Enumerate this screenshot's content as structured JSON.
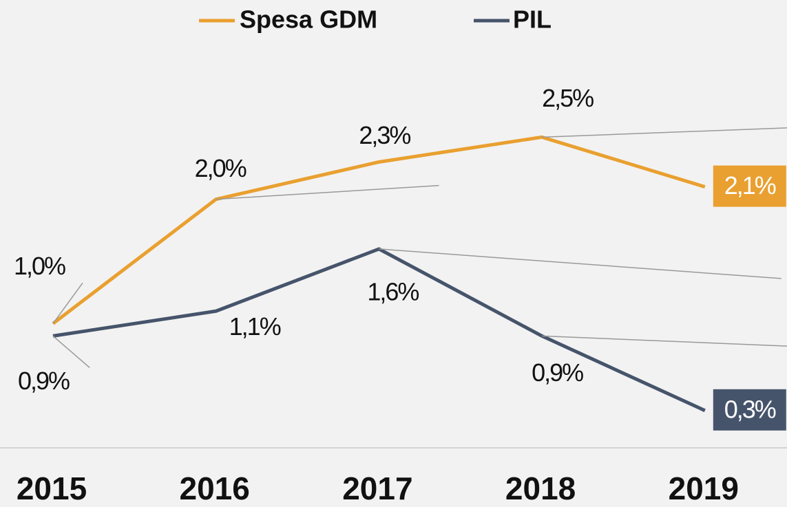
{
  "chart_data": {
    "type": "line",
    "categories": [
      "2015",
      "2016",
      "2017",
      "2018",
      "2019"
    ],
    "series": [
      {
        "name": "Spesa GDM",
        "color": "#e9a030",
        "values": [
          1.0,
          2.0,
          2.3,
          2.5,
          2.1
        ],
        "value_labels": [
          "1,0%",
          "2,0%",
          "2,3%",
          "2,5%",
          "2,1%"
        ]
      },
      {
        "name": "PIL",
        "color": "#46546b",
        "values": [
          0.9,
          1.1,
          1.6,
          0.9,
          0.3
        ],
        "value_labels": [
          "0,9%",
          "1,1%",
          "1,6%",
          "0,9%",
          "0,3%"
        ]
      }
    ],
    "ylim": [
      0,
      3
    ],
    "legend": "top"
  }
}
